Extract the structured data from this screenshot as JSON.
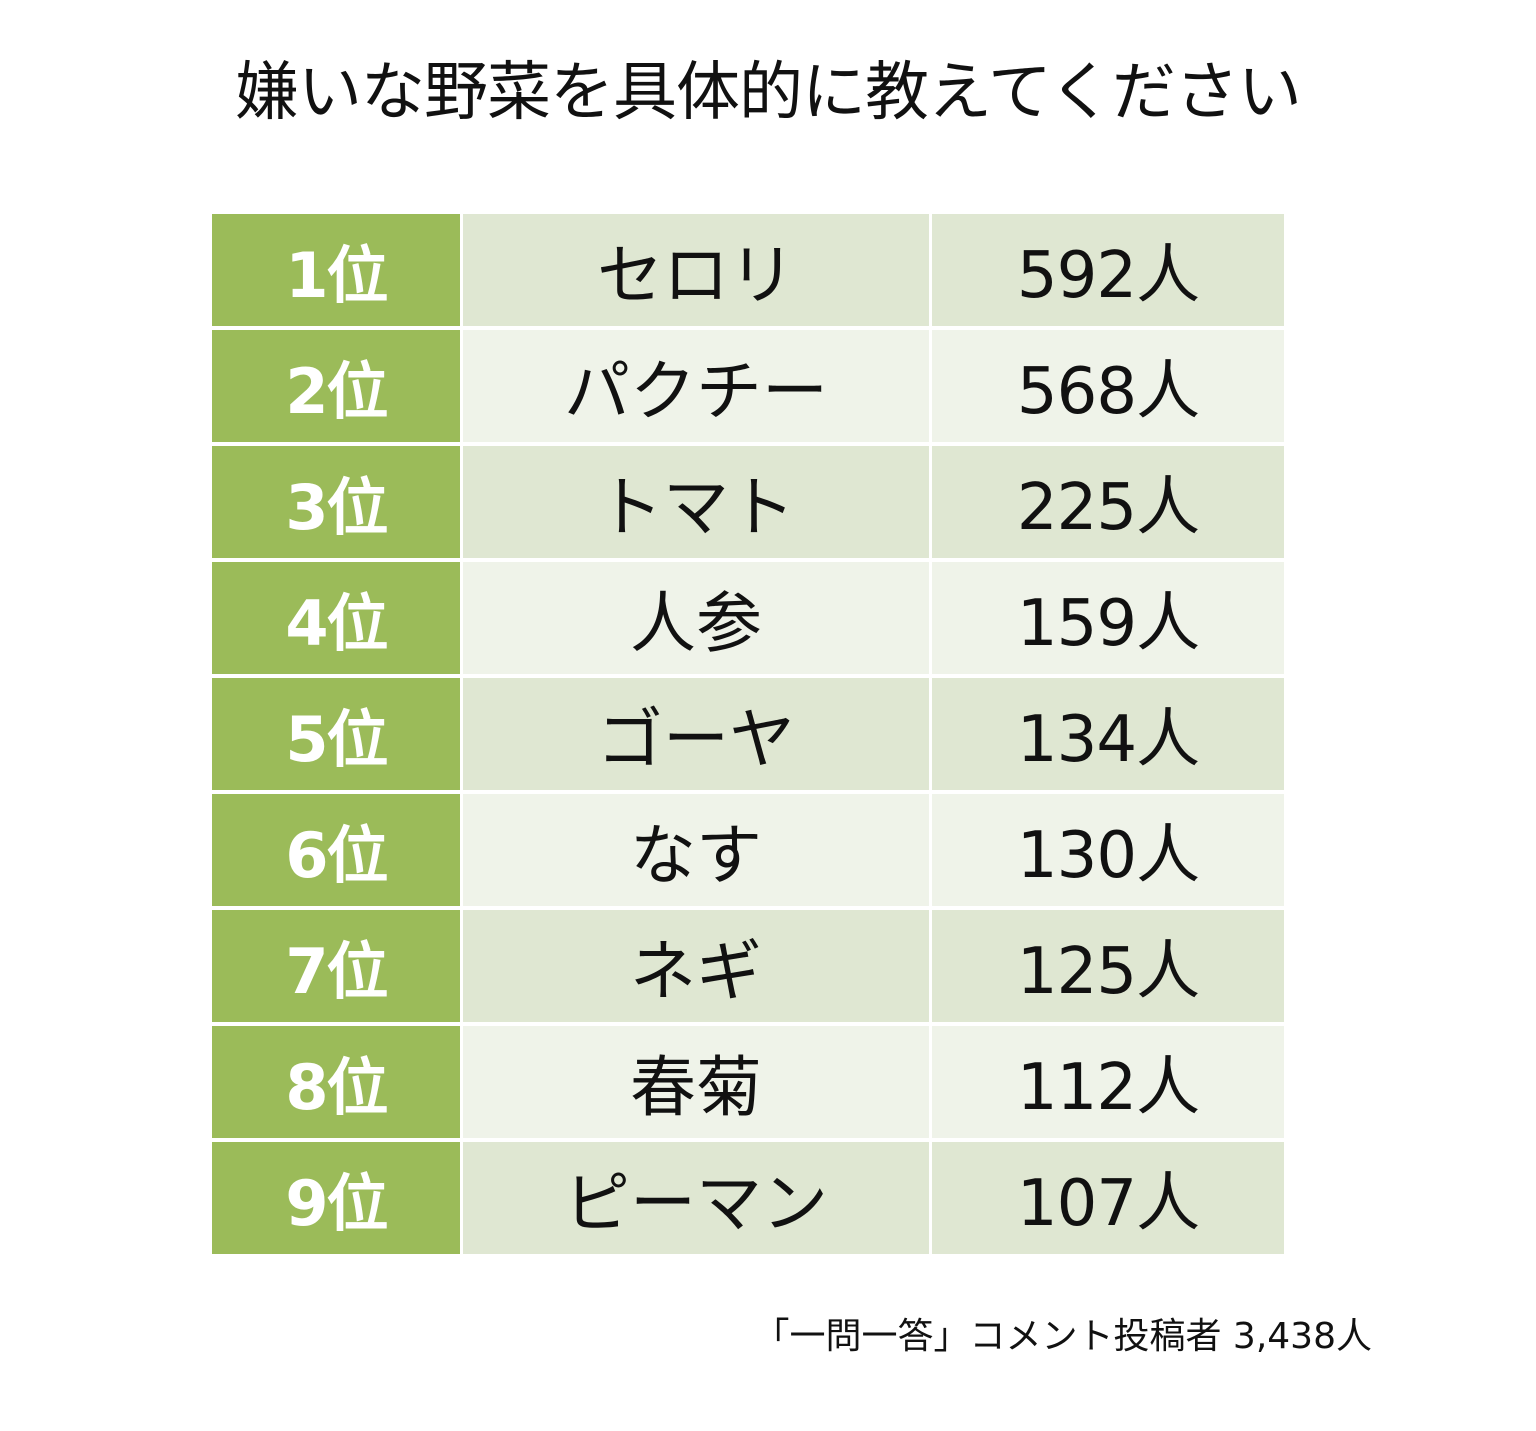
{
  "colors": {
    "rank_background": "#9bbb59",
    "row_odd_background": "#dfe7d2",
    "row_even_background": "#eff3e9",
    "rank_text": "#ffffff",
    "text": "#111111"
  },
  "chart_data": {
    "type": "table",
    "title": "嫌いな野菜を具体的に教えてください",
    "columns": [
      "rank",
      "vegetable",
      "count"
    ],
    "rows": [
      {
        "rank": "1位",
        "vegetable": "セロリ",
        "count": "592人",
        "value": 592
      },
      {
        "rank": "2位",
        "vegetable": "パクチー",
        "count": "568人",
        "value": 568
      },
      {
        "rank": "3位",
        "vegetable": "トマト",
        "count": "225人",
        "value": 225
      },
      {
        "rank": "4位",
        "vegetable": "人参",
        "count": "159人",
        "value": 159
      },
      {
        "rank": "5位",
        "vegetable": "ゴーヤ",
        "count": "134人",
        "value": 134
      },
      {
        "rank": "6位",
        "vegetable": "なす",
        "count": "130人",
        "value": 130
      },
      {
        "rank": "7位",
        "vegetable": "ネギ",
        "count": "125人",
        "value": 125
      },
      {
        "rank": "8位",
        "vegetable": "春菊",
        "count": "112人",
        "value": 112
      },
      {
        "rank": "9位",
        "vegetable": "ピーマン",
        "count": "107人",
        "value": 107
      }
    ],
    "footnote": "「一問一答」コメント投稿者 3,438人"
  }
}
